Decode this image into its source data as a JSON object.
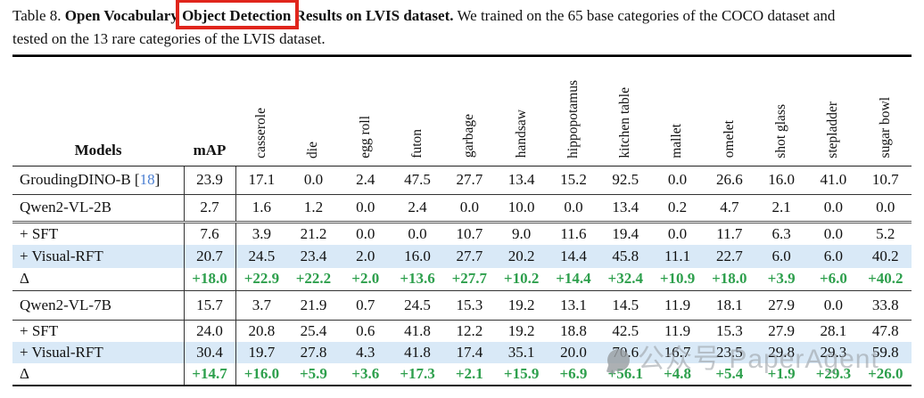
{
  "caption": {
    "label": "Table 8.",
    "bold_intro": "Open Vocabulary",
    "boxed_text": "Object Detection",
    "bold_rest": "Results on LVIS dataset.",
    "line1_rest": "We trained on the 65 base categories of the COCO dataset and",
    "line2": "tested on the 13 rare categories of the LVIS dataset.",
    "box_color": "#e0251c"
  },
  "table": {
    "columns": [
      "Models",
      "mAP",
      "casserole",
      "die",
      "egg roll",
      "futon",
      "garbage",
      "handsaw",
      "hippopotamus",
      "kitchen table",
      "mallet",
      "omelet",
      "shot glass",
      "stepladder",
      "sugar bowl"
    ],
    "rows": [
      {
        "label": "GroudingDINO-B",
        "cite_open": "[",
        "cite_num": "18",
        "cite_close": "]",
        "map": "23.9",
        "style": "plain",
        "divider": "thin",
        "values": [
          "17.1",
          "0.0",
          "2.4",
          "47.5",
          "27.7",
          "13.4",
          "15.2",
          "92.5",
          "0.0",
          "26.6",
          "16.0",
          "41.0",
          "10.7"
        ]
      },
      {
        "label": "Qwen2-VL-2B",
        "map": "2.7",
        "style": "plain",
        "divider": "double",
        "values": [
          "1.6",
          "1.2",
          "0.0",
          "2.4",
          "0.0",
          "10.0",
          "0.0",
          "13.4",
          "0.2",
          "4.7",
          "2.1",
          "0.0",
          "0.0"
        ]
      },
      {
        "label": "+ SFT",
        "map": "7.6",
        "style": "plain",
        "divider": "none",
        "values": [
          "3.9",
          "21.2",
          "0.0",
          "0.0",
          "10.7",
          "9.0",
          "11.6",
          "19.4",
          "0.0",
          "11.7",
          "6.3",
          "0.0",
          "5.2"
        ]
      },
      {
        "label": "+ Visual-RFT",
        "map": "20.7",
        "style": "highlight",
        "divider": "none",
        "values": [
          "24.5",
          "23.4",
          "2.0",
          "16.0",
          "27.7",
          "20.2",
          "14.4",
          "45.8",
          "11.1",
          "22.7",
          "6.0",
          "6.0",
          "40.2"
        ]
      },
      {
        "label": "Δ",
        "map": "+18.0",
        "style": "delta",
        "divider": "thin",
        "values": [
          "+22.9",
          "+22.2",
          "+2.0",
          "+13.6",
          "+27.7",
          "+10.2",
          "+14.4",
          "+32.4",
          "+10.9",
          "+18.0",
          "+3.9",
          "+6.0",
          "+40.2"
        ]
      },
      {
        "label": "Qwen2-VL-7B",
        "map": "15.7",
        "style": "plain",
        "divider": "thin",
        "values": [
          "3.7",
          "21.9",
          "0.7",
          "24.5",
          "15.3",
          "19.2",
          "13.1",
          "14.5",
          "11.9",
          "18.1",
          "27.9",
          "0.0",
          "33.8"
        ]
      },
      {
        "label": "+ SFT",
        "map": "24.0",
        "style": "plain",
        "divider": "none",
        "values": [
          "20.8",
          "25.4",
          "0.6",
          "41.8",
          "12.2",
          "19.2",
          "18.8",
          "42.5",
          "11.9",
          "15.3",
          "27.9",
          "28.1",
          "47.8"
        ]
      },
      {
        "label": "+ Visual-RFT",
        "map": "30.4",
        "style": "highlight",
        "divider": "none",
        "values": [
          "19.7",
          "27.8",
          "4.3",
          "41.8",
          "17.4",
          "35.1",
          "20.0",
          "70.6",
          "16.7",
          "23.5",
          "29.8",
          "29.3",
          "59.8"
        ]
      },
      {
        "label": "Δ",
        "map": "+14.7",
        "style": "delta",
        "divider": "none",
        "values": [
          "+16.0",
          "+5.9",
          "+3.6",
          "+17.3",
          "+2.1",
          "+15.9",
          "+6.9",
          "+56.1",
          "+4.8",
          "+5.4",
          "+1.9",
          "+29.3",
          "+26.0"
        ]
      }
    ]
  },
  "colors": {
    "highlight_row": "#d9e9f7",
    "delta_green": "#2d9f4c",
    "citation_blue": "#4b7fd2",
    "annotation_red": "#e0251c"
  },
  "watermark": {
    "text": "公众号 PaperAgent"
  }
}
